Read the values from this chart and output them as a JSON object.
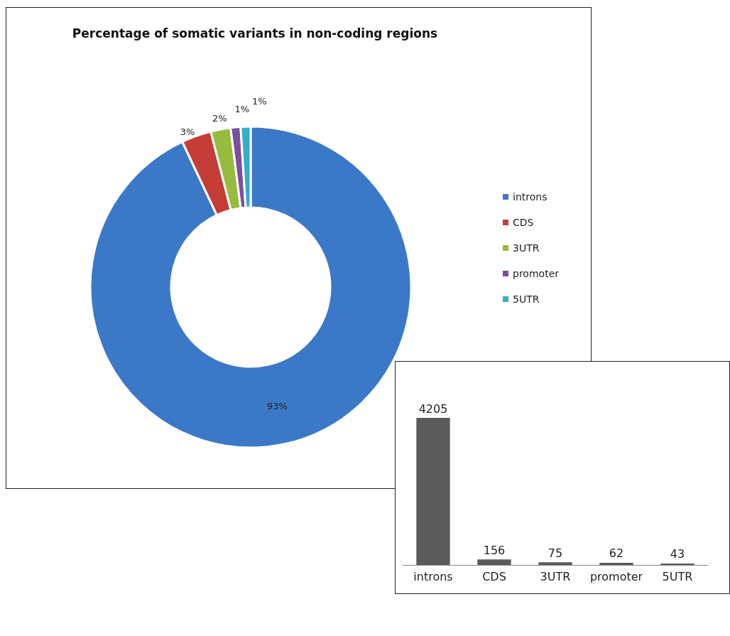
{
  "chart_data": [
    {
      "type": "donut",
      "title": "Percentage of somatic variants in non-coding regions",
      "categories": [
        "introns",
        "CDS",
        "3UTR",
        "promoter",
        "5UTR"
      ],
      "values": [
        93,
        3,
        2,
        1,
        1
      ],
      "value_labels": [
        "93%",
        "3%",
        "2%",
        "1%",
        "1%"
      ],
      "colors": [
        "#3b78c8",
        "#c43c36",
        "#97bb3c",
        "#7b4f9e",
        "#33afc8"
      ],
      "legend": "right"
    },
    {
      "type": "bar",
      "categories": [
        "introns",
        "CDS",
        "3UTR",
        "promoter",
        "5UTR"
      ],
      "values": [
        4205,
        156,
        75,
        62,
        43
      ],
      "color": "#5a5a5a",
      "data_labels": true,
      "legend": false
    }
  ]
}
